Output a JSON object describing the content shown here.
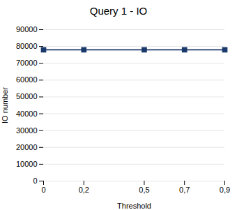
{
  "chart_data": {
    "type": "line",
    "title": "Query 1 - IO",
    "xlabel": "Threshold",
    "ylabel": "IO number",
    "x": [
      0,
      0.2,
      0.5,
      0.7,
      0.9
    ],
    "values": [
      78000,
      78000,
      78000,
      78000,
      78000
    ],
    "color": "#1a3a6b",
    "marker": "square",
    "xlim": [
      0,
      0.9
    ],
    "xticks": [
      0,
      {
        "value": 0.2,
        "label": "0,2"
      },
      {
        "value": 0.5,
        "label": "0,5"
      },
      {
        "value": 0.7,
        "label": "0,7"
      },
      {
        "value": 0.9,
        "label": "0,9"
      }
    ],
    "ylim": [
      0,
      90000
    ],
    "yticks": [
      0,
      10000,
      20000,
      30000,
      40000,
      50000,
      60000,
      70000,
      80000,
      90000
    ],
    "grid": true
  }
}
